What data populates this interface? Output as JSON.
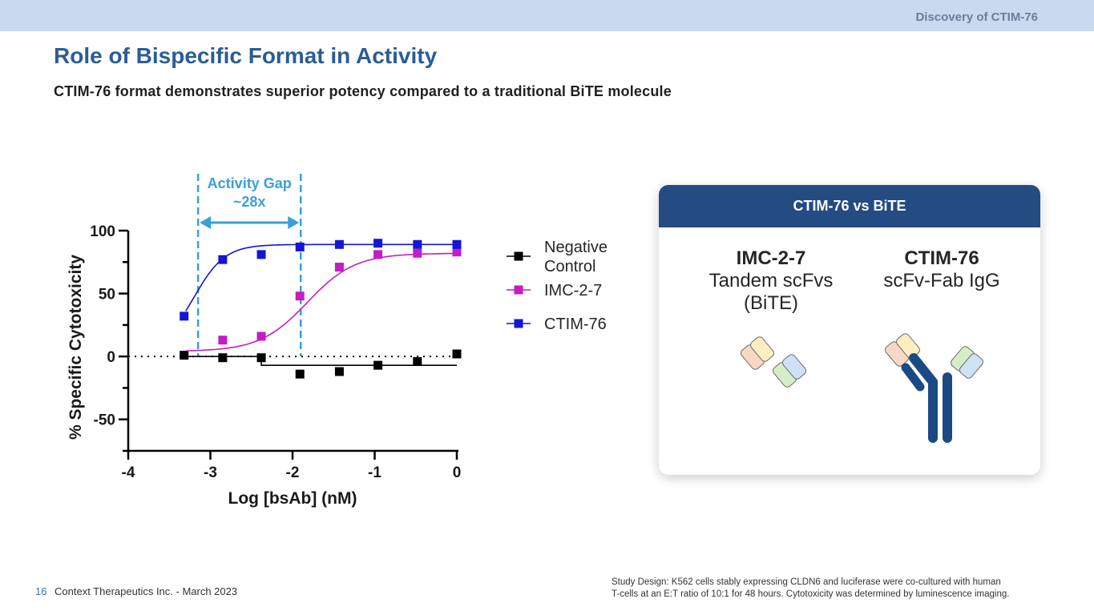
{
  "header": {
    "section": "Discovery of CTIM-76"
  },
  "page": {
    "title": "Role of Bispecific Format in Activity",
    "subtitle": "CTIM-76 format demonstrates superior potency compared to a traditional BiTE molecule"
  },
  "chart_data": {
    "type": "line",
    "title": "",
    "xlabel": "Log [bsAb] (nM)",
    "ylabel": "% Specific Cytotoxicity",
    "xlim": [
      -4,
      0
    ],
    "ylim": [
      -75,
      100
    ],
    "xticks": [
      -4,
      -3,
      -2,
      -1,
      0
    ],
    "yticks": [
      -50,
      0,
      50,
      100
    ],
    "xtick_labels": [
      "-4",
      "-3",
      "-2",
      "-1",
      "0"
    ],
    "ytick_labels": [
      "-50",
      "0",
      "50",
      "100"
    ],
    "reference_line_y": 0,
    "series": [
      {
        "name": "Negative Control",
        "legend_label": [
          "Negative",
          "Control"
        ],
        "color": "#000000",
        "x": [
          -3.32,
          -2.85,
          -2.38,
          -1.91,
          -1.43,
          -0.96,
          -0.48,
          0
        ],
        "y": [
          1,
          -1,
          -1,
          -14,
          -12,
          -7,
          -4,
          2
        ],
        "fit": {
          "kind": "step",
          "before": 0,
          "after": -7,
          "at": -2.38
        }
      },
      {
        "name": "IMC-2-7",
        "legend_label": [
          "IMC-2-7"
        ],
        "color": "#c31dc3",
        "x": [
          -3.32,
          -2.85,
          -2.38,
          -1.91,
          -1.43,
          -0.96,
          -0.48,
          0
        ],
        "y": [
          null,
          13,
          16,
          48,
          71,
          81,
          82,
          83
        ],
        "fit": {
          "kind": "sigmoid",
          "bottom": 4,
          "top": 82,
          "logEC50": -1.82,
          "hill": 1.5
        }
      },
      {
        "name": "CTIM-76",
        "legend_label": [
          "CTIM-76"
        ],
        "color": "#1515d6",
        "x": [
          -3.32,
          -2.85,
          -2.38,
          -1.91,
          -1.43,
          -0.96,
          -0.48,
          0
        ],
        "y": [
          32,
          77,
          81,
          87,
          89,
          90,
          89,
          89
        ],
        "fit": {
          "kind": "sigmoid",
          "bottom": 5,
          "top": 89,
          "logEC50": -3.2,
          "hill": 2.3
        }
      }
    ],
    "annotation": {
      "text": [
        "Activity Gap",
        "~28x"
      ],
      "x_from": -3.15,
      "x_to": -1.9,
      "color": "#3aa0d9"
    }
  },
  "card": {
    "header": "CTIM-76 vs BiTE",
    "left": {
      "name": "IMC-2-7",
      "desc_line1": "Tandem scFvs",
      "desc_line2": "(BiTE)"
    },
    "right": {
      "name": "CTIM-76",
      "desc_line1": "scFv-Fab IgG"
    }
  },
  "footer": {
    "page_number": "16",
    "company": "Context Therapeutics Inc. - March 2023",
    "note_line1": "Study Design: K562 cells stably expressing CLDN6 and luciferase were co-cultured with human",
    "note_line2": "T-cells at an E:T ratio of 10:1 for 48 hours. Cytotoxicity was determined by luminescence imaging."
  }
}
